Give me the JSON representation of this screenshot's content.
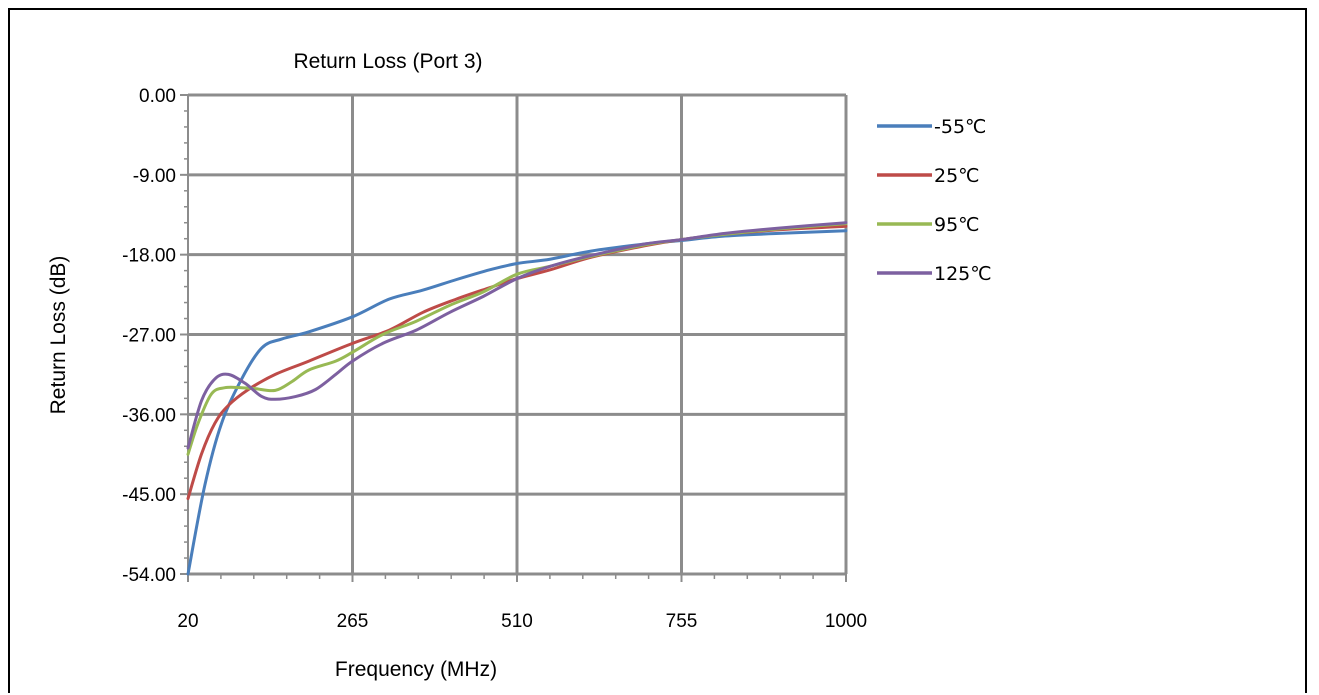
{
  "chart_data": {
    "type": "line",
    "title": "Return Loss (Port 3)",
    "xlabel": "Frequency (MHz)",
    "ylabel": "Return Loss (dB)",
    "xlim": [
      20,
      1000
    ],
    "ylim": [
      -54,
      0
    ],
    "x_ticks": [
      20,
      265,
      510,
      755,
      1000
    ],
    "x_tick_labels": [
      "20",
      "265",
      "510",
      "755",
      "1000"
    ],
    "y_ticks": [
      0,
      -9,
      -18,
      -27,
      -36,
      -45,
      -54
    ],
    "y_tick_labels": [
      "0.00",
      "-9.00",
      "-18.00",
      "-27.00",
      "-36.00",
      "-45.00",
      "-54.00"
    ],
    "grid": true,
    "legend_position": "right",
    "series": [
      {
        "name": "-55℃",
        "color": "#4a7ebb",
        "points": [
          [
            20,
            -54
          ],
          [
            45,
            -44
          ],
          [
            70,
            -37
          ],
          [
            100,
            -32
          ],
          [
            130,
            -28.5
          ],
          [
            160,
            -27.5
          ],
          [
            200,
            -26.7
          ],
          [
            265,
            -25
          ],
          [
            320,
            -23
          ],
          [
            370,
            -22
          ],
          [
            420,
            -20.8
          ],
          [
            470,
            -19.7
          ],
          [
            510,
            -19
          ],
          [
            560,
            -18.5
          ],
          [
            620,
            -17.6
          ],
          [
            700,
            -16.8
          ],
          [
            755,
            -16.4
          ],
          [
            820,
            -15.9
          ],
          [
            900,
            -15.6
          ],
          [
            1000,
            -15.3
          ]
        ]
      },
      {
        "name": "25℃",
        "color": "#be4b48",
        "points": [
          [
            20,
            -45.5
          ],
          [
            40,
            -40.5
          ],
          [
            60,
            -37
          ],
          [
            80,
            -35
          ],
          [
            110,
            -33.2
          ],
          [
            150,
            -31.5
          ],
          [
            200,
            -30
          ],
          [
            265,
            -28
          ],
          [
            320,
            -26.5
          ],
          [
            370,
            -24.5
          ],
          [
            420,
            -23
          ],
          [
            470,
            -21.7
          ],
          [
            510,
            -20.7
          ],
          [
            560,
            -19.7
          ],
          [
            620,
            -18.3
          ],
          [
            700,
            -17
          ],
          [
            755,
            -16.3
          ],
          [
            820,
            -15.7
          ],
          [
            900,
            -15.2
          ],
          [
            1000,
            -14.8
          ]
        ]
      },
      {
        "name": "95℃",
        "color": "#98b954",
        "points": [
          [
            20,
            -40.5
          ],
          [
            35,
            -37
          ],
          [
            55,
            -33.7
          ],
          [
            75,
            -33
          ],
          [
            100,
            -33
          ],
          [
            120,
            -33.1
          ],
          [
            150,
            -33.3
          ],
          [
            175,
            -32.3
          ],
          [
            200,
            -31
          ],
          [
            240,
            -30
          ],
          [
            265,
            -29
          ],
          [
            310,
            -27
          ],
          [
            360,
            -25.5
          ],
          [
            410,
            -23.7
          ],
          [
            460,
            -22.2
          ],
          [
            510,
            -20.2
          ],
          [
            560,
            -19.3
          ],
          [
            620,
            -18.2
          ],
          [
            700,
            -16.9
          ],
          [
            755,
            -16.3
          ],
          [
            820,
            -15.7
          ],
          [
            900,
            -15.1
          ],
          [
            1000,
            -14.5
          ]
        ]
      },
      {
        "name": "125℃",
        "color": "#7d60a0",
        "points": [
          [
            20,
            -39.8
          ],
          [
            40,
            -34.5
          ],
          [
            60,
            -32
          ],
          [
            80,
            -31.5
          ],
          [
            105,
            -32.5
          ],
          [
            130,
            -34
          ],
          [
            150,
            -34.3
          ],
          [
            180,
            -34
          ],
          [
            210,
            -33.2
          ],
          [
            240,
            -31.5
          ],
          [
            265,
            -30
          ],
          [
            310,
            -28
          ],
          [
            360,
            -26.5
          ],
          [
            410,
            -24.5
          ],
          [
            460,
            -22.7
          ],
          [
            510,
            -20.7
          ],
          [
            560,
            -19.3
          ],
          [
            620,
            -18.1
          ],
          [
            700,
            -16.8
          ],
          [
            755,
            -16.3
          ],
          [
            820,
            -15.6
          ],
          [
            900,
            -15
          ],
          [
            1000,
            -14.4
          ]
        ]
      }
    ]
  }
}
